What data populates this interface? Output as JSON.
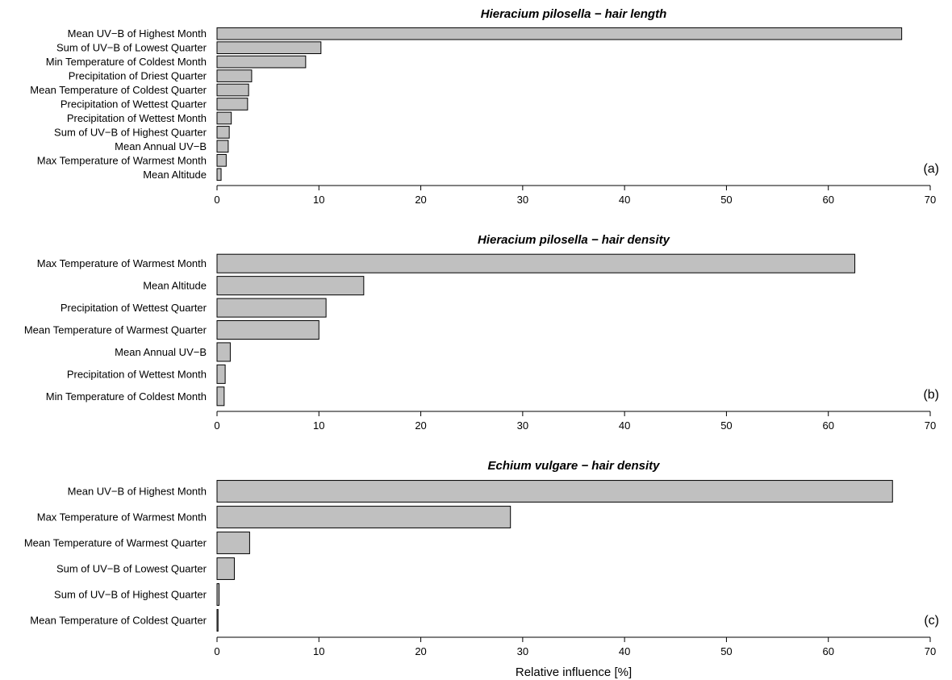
{
  "colors": {
    "bar_fill": "#c0c0c0",
    "bar_stroke": "#000000",
    "axis": "#000000"
  },
  "xlabel": "Relative influence [%]",
  "chart_data": [
    {
      "type": "bar",
      "orientation": "horizontal",
      "title": "Hieracium pilosella − hair length",
      "panel_label": "(a)",
      "xlim": [
        0,
        70
      ],
      "x_ticks": [
        0,
        10,
        20,
        30,
        40,
        50,
        60,
        70
      ],
      "categories": [
        "Mean UV−B of Highest Month",
        "Sum of UV−B of Lowest Quarter",
        "Min Temperature of Coldest Month",
        "Precipitation of Driest Quarter",
        "Mean Temperature of Coldest Quarter",
        "Precipitation of Wettest Quarter",
        "Precipitation of Wettest Month",
        "Sum of UV−B of Highest Quarter",
        "Mean Annual UV−B",
        "Max Temperature of Warmest Month",
        "Mean Altitude"
      ],
      "values": [
        67.2,
        10.2,
        8.7,
        3.4,
        3.1,
        3.0,
        1.4,
        1.2,
        1.1,
        0.9,
        0.4
      ]
    },
    {
      "type": "bar",
      "orientation": "horizontal",
      "title": "Hieracium pilosella − hair density",
      "panel_label": "(b)",
      "xlim": [
        0,
        70
      ],
      "x_ticks": [
        0,
        10,
        20,
        30,
        40,
        50,
        60,
        70
      ],
      "categories": [
        "Max Temperature of Warmest Month",
        "Mean Altitude",
        "Precipitation of Wettest Quarter",
        "Mean Temperature of Warmest Quarter",
        "Mean Annual UV−B",
        "Precipitation of Wettest Month",
        "Min Temperature of Coldest Month"
      ],
      "values": [
        62.6,
        14.4,
        10.7,
        10.0,
        1.3,
        0.8,
        0.7
      ]
    },
    {
      "type": "bar",
      "orientation": "horizontal",
      "title": "Echium vulgare − hair density",
      "panel_label": "(c)",
      "xlim": [
        0,
        70
      ],
      "x_ticks": [
        0,
        10,
        20,
        30,
        40,
        50,
        60,
        70
      ],
      "categories": [
        "Mean UV−B of Highest Month",
        "Max Temperature of Warmest Month",
        "Mean Temperature of Warmest Quarter",
        "Sum of UV−B of Lowest Quarter",
        "Sum of UV−B of Highest Quarter",
        "Mean Temperature of Coldest Quarter"
      ],
      "values": [
        66.3,
        28.8,
        3.2,
        1.7,
        0.2,
        0.1
      ]
    }
  ]
}
